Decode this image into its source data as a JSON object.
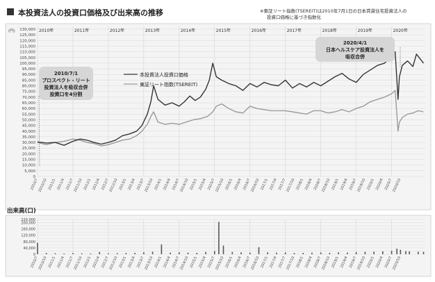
{
  "header": {
    "title": "本投資法人の投資口価格及び出来高の推移",
    "note_line1": "※東証リート指数(TSEREIT)は2010年7月1日の日本賃貸住宅投資法人の",
    "note_line2": "投資口価格に基づき指数化"
  },
  "annotations": {
    "merger_2010": [
      "2010/7/1",
      "プロスペクト・リート",
      "投資法人を吸収合併",
      "投資口を4分割"
    ],
    "merger_2020": [
      "2020/4/1",
      "日本ヘルスケア投資法人を",
      "吸収合併"
    ]
  },
  "chart_data": [
    {
      "type": "line",
      "title": "",
      "y_unit_label": "(円)",
      "ylim": [
        0,
        130000
      ],
      "yticks": [
        0,
        5000,
        10000,
        15000,
        20000,
        25000,
        30000,
        35000,
        40000,
        45000,
        50000,
        55000,
        60000,
        65000,
        70000,
        75000,
        80000,
        85000,
        90000,
        95000,
        100000,
        105000,
        110000,
        115000,
        120000,
        125000,
        130000
      ],
      "ytick_labels": [
        "0",
        "5,000",
        "10,000",
        "15,000",
        "20,000",
        "25,000",
        "30,000",
        "35,000",
        "40,000",
        "45,000",
        "50,000",
        "55,000",
        "60,000",
        "65,000",
        "70,000",
        "75,000",
        "80,000",
        "85,000",
        "90,000",
        "95,000",
        "100,000",
        "105,000",
        "110,000",
        "115,000",
        "120,000",
        "125,000",
        "130,000"
      ],
      "xlim": [
        2010.0,
        2020.95
      ],
      "year_labels": [
        "2010年",
        "2011年",
        "2012年",
        "2013年",
        "2014年",
        "2015年",
        "2016年",
        "2017年",
        "2018年",
        "2019年",
        "2020年"
      ],
      "x_tick_labels": [
        "2010/7",
        "2010/10",
        "2011/1",
        "2011/4",
        "2011/7",
        "2011/10",
        "2012/1",
        "2012/4",
        "2012/7",
        "2012/10",
        "2013/1",
        "2013/4",
        "2013/7",
        "2013/10",
        "2014/1",
        "2014/4",
        "2014/7",
        "2014/10",
        "2015/1",
        "2015/4",
        "2015/7",
        "2015/10",
        "2016/1",
        "2016/4",
        "2016/7",
        "2016/10",
        "2017/1",
        "2017/4",
        "2017/7",
        "2017/10",
        "2018/1",
        "2018/4",
        "2018/7",
        "2018/10",
        "2019/1",
        "2019/4",
        "2019/7",
        "2019/10",
        "2020/1",
        "2020/4",
        "2020/7",
        "2020/10"
      ],
      "grid": true,
      "legend_position": "top-left",
      "series": [
        {
          "name": "本投資法人投資口価格",
          "color": "#333333",
          "x": [
            2010.0,
            2010.25,
            2010.5,
            2010.75,
            2011.0,
            2011.2,
            2011.4,
            2011.6,
            2011.8,
            2012.0,
            2012.2,
            2012.4,
            2012.6,
            2012.8,
            2012.95,
            2013.1,
            2013.2,
            2013.28,
            2013.4,
            2013.6,
            2013.8,
            2014.0,
            2014.15,
            2014.3,
            2014.45,
            2014.6,
            2014.75,
            2014.85,
            2014.95,
            2015.05,
            2015.2,
            2015.4,
            2015.6,
            2015.8,
            2016.0,
            2016.2,
            2016.4,
            2016.6,
            2016.8,
            2017.0,
            2017.2,
            2017.4,
            2017.6,
            2017.8,
            2018.0,
            2018.2,
            2018.4,
            2018.6,
            2018.8,
            2019.0,
            2019.2,
            2019.4,
            2019.6,
            2019.8,
            2020.0,
            2020.1,
            2020.18,
            2020.22,
            2020.3,
            2020.45,
            2020.6,
            2020.7,
            2020.8,
            2020.9
          ],
          "y": [
            30500,
            29500,
            30000,
            27500,
            31000,
            33000,
            32000,
            30000,
            28500,
            30000,
            32000,
            36000,
            37500,
            40000,
            45000,
            55000,
            66000,
            80000,
            68000,
            63000,
            65000,
            62000,
            66000,
            71000,
            67000,
            70000,
            77000,
            85000,
            100000,
            88000,
            85000,
            82000,
            80000,
            76000,
            82000,
            79000,
            83000,
            81000,
            80000,
            85000,
            78000,
            82000,
            79000,
            83000,
            80000,
            84000,
            88000,
            91000,
            86000,
            83000,
            90000,
            94000,
            98000,
            100000,
            106000,
            110000,
            68000,
            88000,
            98000,
            102000,
            97000,
            108000,
            104000,
            100000
          ]
        },
        {
          "name": "東証リート指数(TSEREIT)",
          "color": "#9a9a9a",
          "x": [
            2010.0,
            2010.25,
            2010.5,
            2010.75,
            2011.0,
            2011.2,
            2011.4,
            2011.6,
            2011.8,
            2012.0,
            2012.2,
            2012.4,
            2012.6,
            2012.8,
            2012.95,
            2013.1,
            2013.2,
            2013.28,
            2013.4,
            2013.6,
            2013.8,
            2014.0,
            2014.2,
            2014.4,
            2014.6,
            2014.8,
            2014.95,
            2015.05,
            2015.2,
            2015.4,
            2015.6,
            2015.8,
            2016.0,
            2016.2,
            2016.4,
            2016.6,
            2016.8,
            2017.0,
            2017.2,
            2017.4,
            2017.6,
            2017.8,
            2018.0,
            2018.2,
            2018.4,
            2018.6,
            2018.8,
            2019.0,
            2019.2,
            2019.4,
            2019.6,
            2019.8,
            2020.0,
            2020.1,
            2020.18,
            2020.22,
            2020.3,
            2020.45,
            2020.6,
            2020.75,
            2020.9
          ],
          "y": [
            30000,
            28000,
            30000,
            31000,
            33000,
            32000,
            30000,
            29000,
            27000,
            28000,
            30000,
            32000,
            33000,
            36000,
            40000,
            46000,
            53000,
            57000,
            48000,
            46000,
            47000,
            46000,
            48000,
            50000,
            51000,
            53000,
            57000,
            62000,
            64000,
            60000,
            57000,
            56000,
            62000,
            60000,
            59000,
            58000,
            58000,
            58000,
            57000,
            56000,
            55000,
            58000,
            58000,
            56000,
            57000,
            59000,
            57000,
            60000,
            62000,
            66000,
            68000,
            70000,
            73000,
            76000,
            40000,
            48000,
            52000,
            55000,
            56000,
            58000,
            57000
          ]
        }
      ]
    },
    {
      "type": "bar",
      "title": "出来高(口)",
      "ylim": [
        0,
        220000
      ],
      "yticks": [
        0,
        20000,
        40000,
        60000,
        80000,
        100000,
        120000,
        140000,
        160000,
        180000,
        200000,
        220000
      ],
      "ytick_labels": [
        "0",
        "20,000",
        "40,000",
        "60,000",
        "80,000",
        "100,000",
        "120,000",
        "140,000",
        "160,000",
        "180,000",
        "200,000",
        "220,000"
      ],
      "xlim": [
        2010.0,
        2020.95
      ],
      "x_tick_labels": [
        "2010/7",
        "2010/10",
        "2011/1",
        "2011/4",
        "2011/7",
        "2011/10",
        "2012/1",
        "2012/4",
        "2012/7",
        "2012/10",
        "2013/1",
        "2013/4",
        "2013/7",
        "2013/10",
        "2014/1",
        "2014/4",
        "2014/7",
        "2014/10",
        "2015/1",
        "2015/4",
        "2015/7",
        "2015/10",
        "2016/1",
        "2016/4",
        "2016/7",
        "2016/10",
        "2017/1",
        "2017/4",
        "2017/7",
        "2017/10",
        "2018/1",
        "2018/4",
        "2018/7",
        "2018/10",
        "2019/1",
        "2019/4",
        "2019/7",
        "2019/10",
        "2020/1",
        "2020/4",
        "2020/7",
        "2020/10"
      ],
      "grid": true,
      "series": [
        {
          "name": "",
          "color": "#555555",
          "x": [
            2010.0,
            2010.25,
            2010.5,
            2010.75,
            2011.0,
            2011.25,
            2011.5,
            2011.75,
            2012.0,
            2012.25,
            2012.5,
            2012.75,
            2013.0,
            2013.25,
            2013.5,
            2013.75,
            2014.0,
            2014.25,
            2014.5,
            2014.75,
            2015.0,
            2015.12,
            2015.25,
            2015.5,
            2015.75,
            2016.0,
            2016.25,
            2016.5,
            2016.75,
            2017.0,
            2017.25,
            2017.5,
            2017.75,
            2018.0,
            2018.25,
            2018.5,
            2018.75,
            2019.0,
            2019.25,
            2019.5,
            2019.75,
            2020.0,
            2020.15,
            2020.25,
            2020.4,
            2020.5,
            2020.75,
            2020.9
          ],
          "y": [
            72000,
            8000,
            6000,
            5000,
            8000,
            6000,
            5000,
            14000,
            6000,
            7000,
            8000,
            9000,
            12000,
            16000,
            62000,
            10000,
            12000,
            10000,
            9000,
            14000,
            20000,
            205000,
            55000,
            14000,
            12000,
            10000,
            45000,
            12000,
            10000,
            11000,
            8000,
            9000,
            10000,
            11000,
            9000,
            12000,
            10000,
            13000,
            15000,
            16000,
            18000,
            22000,
            35000,
            28000,
            20000,
            18000,
            16000,
            15000
          ]
        }
      ]
    }
  ]
}
